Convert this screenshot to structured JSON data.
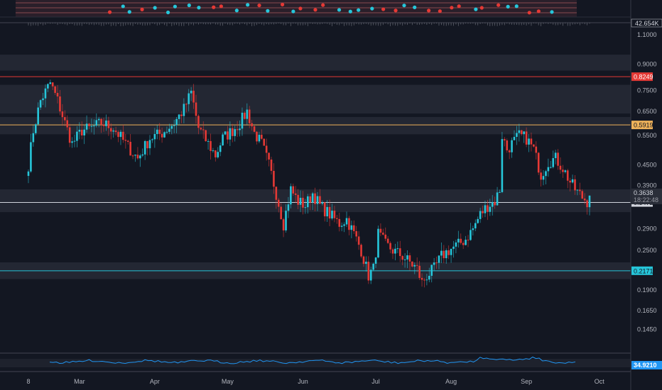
{
  "colors": {
    "background": "#131722",
    "up": "#26c6da",
    "down": "#e53935",
    "resistance_red": "#e53935",
    "level_orange": "#f0b35a",
    "level_gray": "#d1d4dc",
    "support_cyan": "#26c6da",
    "zone": "#2a2e39",
    "oscillator": "#2196f3"
  },
  "volume_panel": {
    "value_label": "42.654K"
  },
  "oscillator_panel": {
    "value_label": "34.9210"
  },
  "chart_data": {
    "type": "candlestick",
    "y_scale": "log",
    "ylim": [
      0.125,
      1.15
    ],
    "y_ticks": [
      {
        "value": 1.1,
        "label": "1.1000"
      },
      {
        "value": 0.9,
        "label": "0.9000"
      },
      {
        "value": 0.75,
        "label": "0.7500"
      },
      {
        "value": 0.65,
        "label": "0.6500"
      },
      {
        "value": 0.55,
        "label": "0.5500"
      },
      {
        "value": 0.45,
        "label": "0.4500"
      },
      {
        "value": 0.39,
        "label": "0.3900"
      },
      {
        "value": 0.29,
        "label": "0.2900"
      },
      {
        "value": 0.25,
        "label": "0.2500"
      },
      {
        "value": 0.19,
        "label": "0.1900"
      },
      {
        "value": 0.165,
        "label": "0.1650"
      },
      {
        "value": 0.145,
        "label": "0.1450"
      }
    ],
    "x_ticks": [
      {
        "day": 0,
        "label": "8"
      },
      {
        "day": 21,
        "label": "Mar"
      },
      {
        "day": 52,
        "label": "Apr"
      },
      {
        "day": 82,
        "label": "May"
      },
      {
        "day": 113,
        "label": "Jun"
      },
      {
        "day": 143,
        "label": "Jul"
      },
      {
        "day": 174,
        "label": "Aug"
      },
      {
        "day": 205,
        "label": "Sep"
      },
      {
        "day": 235,
        "label": "Oct"
      }
    ],
    "price_levels": [
      {
        "value": 0.8249,
        "label": "0.8249",
        "color": "#e53935",
        "tag_text": "#ffffff"
      },
      {
        "value": 0.5919,
        "label": "0.5919",
        "color": "#f0b35a",
        "tag_text": "#131722"
      },
      {
        "value": 0.3472,
        "label": "0.3472",
        "color": "#d1d4dc",
        "tag_text": "#131722"
      },
      {
        "value": 0.2171,
        "label": "0.2171",
        "color": "#26c6da",
        "tag_text": "#131722"
      }
    ],
    "current": {
      "value": 0.3638,
      "label": "0.3638",
      "countdown": "18:22:48"
    },
    "zones": [
      {
        "from": 0.86,
        "to": 0.96
      },
      {
        "from": 0.64,
        "to": 0.78
      },
      {
        "from": 0.555,
        "to": 0.625
      },
      {
        "from": 0.325,
        "to": 0.38
      },
      {
        "from": 0.205,
        "to": 0.23
      }
    ],
    "anchors": [
      [
        0,
        0.45
      ],
      [
        2,
        0.57
      ],
      [
        5,
        0.7
      ],
      [
        9,
        0.79
      ],
      [
        12,
        0.7
      ],
      [
        15,
        0.6
      ],
      [
        18,
        0.52
      ],
      [
        22,
        0.57
      ],
      [
        26,
        0.58
      ],
      [
        30,
        0.6
      ],
      [
        35,
        0.58
      ],
      [
        40,
        0.52
      ],
      [
        45,
        0.47
      ],
      [
        50,
        0.54
      ],
      [
        55,
        0.56
      ],
      [
        60,
        0.6
      ],
      [
        64,
        0.66
      ],
      [
        67,
        0.74
      ],
      [
        70,
        0.58
      ],
      [
        74,
        0.52
      ],
      [
        77,
        0.48
      ],
      [
        80,
        0.54
      ],
      [
        84,
        0.57
      ],
      [
        87,
        0.6
      ],
      [
        90,
        0.65
      ],
      [
        93,
        0.56
      ],
      [
        96,
        0.52
      ],
      [
        99,
        0.45
      ],
      [
        102,
        0.37
      ],
      [
        105,
        0.3
      ],
      [
        108,
        0.38
      ],
      [
        111,
        0.35
      ],
      [
        114,
        0.34
      ],
      [
        117,
        0.37
      ],
      [
        120,
        0.34
      ],
      [
        124,
        0.32
      ],
      [
        128,
        0.3
      ],
      [
        131,
        0.31
      ],
      [
        134,
        0.28
      ],
      [
        137,
        0.25
      ],
      [
        140,
        0.21
      ],
      [
        142,
        0.22
      ],
      [
        144,
        0.28
      ],
      [
        147,
        0.26
      ],
      [
        150,
        0.25
      ],
      [
        154,
        0.24
      ],
      [
        157,
        0.23
      ],
      [
        160,
        0.22
      ],
      [
        162,
        0.2
      ],
      [
        164,
        0.21
      ],
      [
        167,
        0.22
      ],
      [
        170,
        0.24
      ],
      [
        173,
        0.25
      ],
      [
        177,
        0.26
      ],
      [
        180,
        0.27
      ],
      [
        183,
        0.29
      ],
      [
        186,
        0.32
      ],
      [
        189,
        0.34
      ],
      [
        192,
        0.35
      ],
      [
        194,
        0.38
      ],
      [
        195,
        0.55
      ],
      [
        197,
        0.5
      ],
      [
        199,
        0.52
      ],
      [
        202,
        0.55
      ],
      [
        205,
        0.54
      ],
      [
        208,
        0.5
      ],
      [
        211,
        0.42
      ],
      [
        214,
        0.46
      ],
      [
        217,
        0.47
      ],
      [
        220,
        0.44
      ],
      [
        223,
        0.4
      ],
      [
        225,
        0.38
      ],
      [
        228,
        0.36
      ],
      [
        230,
        0.35
      ],
      [
        231,
        0.364
      ]
    ]
  }
}
